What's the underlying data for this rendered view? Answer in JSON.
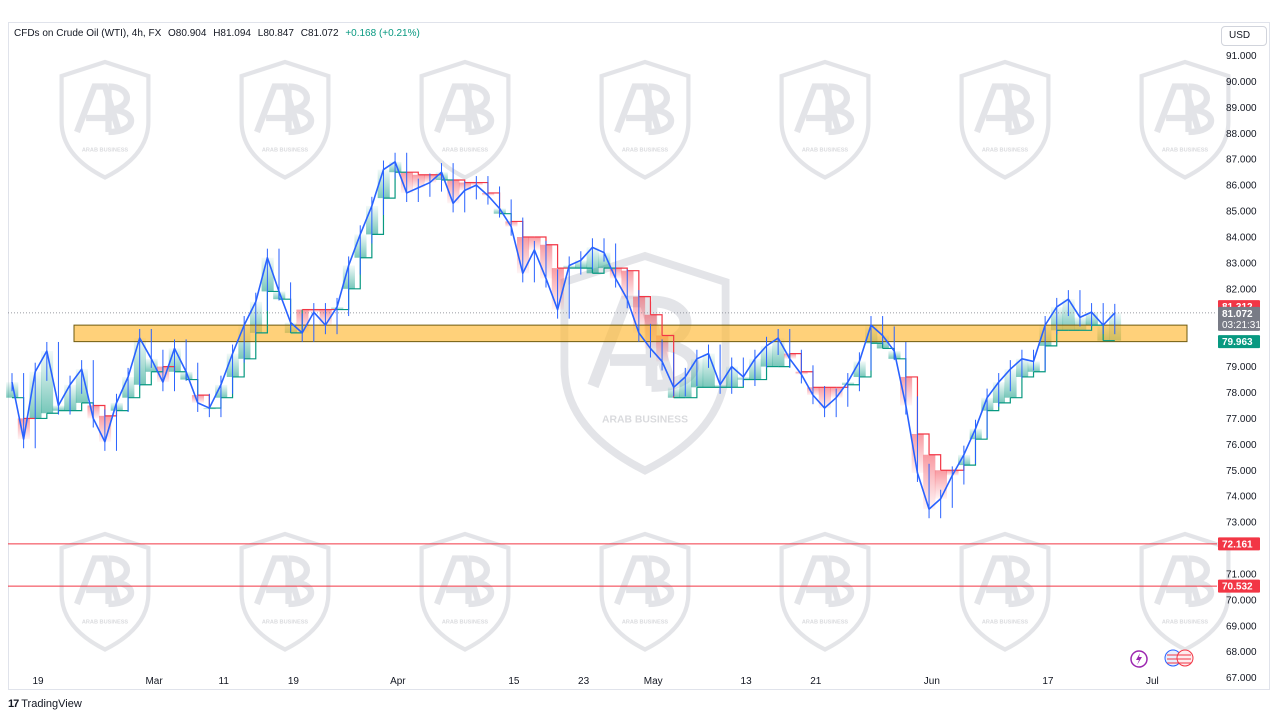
{
  "header": {
    "symbol": "CFDs on Crude Oil (WTI), 4h, FX",
    "open": "O80.904",
    "high": "H81.094",
    "low": "L80.847",
    "close": "C81.072",
    "change": "+0.168 (+0.21%)"
  },
  "currency_label": "USD",
  "branding": {
    "platform": "TradingView",
    "watermark": "ARAB BUSINESS"
  },
  "colors": {
    "up_band": "#089981",
    "down_band": "#f23645",
    "zone_fill": "#ffb833",
    "price_line": "#2962ff"
  },
  "chart_data": {
    "type": "line",
    "title": "CFDs on Crude Oil (WTI), 4h, FX",
    "ylim": [
      66.6,
      91.6
    ],
    "grid": false,
    "y_ticks": [
      "91.000",
      "90.000",
      "89.000",
      "88.000",
      "87.000",
      "86.000",
      "85.000",
      "84.000",
      "83.000",
      "82.000",
      "79.000",
      "78.000",
      "77.000",
      "76.000",
      "75.000",
      "74.000",
      "73.000",
      "71.000",
      "70.000",
      "69.000",
      "68.000",
      "67.000"
    ],
    "x_ticks": [
      {
        "label": "19",
        "i": 0
      },
      {
        "label": "Mar",
        "i": 10
      },
      {
        "label": "11",
        "i": 16
      },
      {
        "label": "19",
        "i": 22
      },
      {
        "label": "Apr",
        "i": 31
      },
      {
        "label": "15",
        "i": 41
      },
      {
        "label": "23",
        "i": 47
      },
      {
        "label": "May",
        "i": 53
      },
      {
        "label": "13",
        "i": 61
      },
      {
        "label": "21",
        "i": 67
      },
      {
        "label": "Jun",
        "i": 77
      },
      {
        "label": "17",
        "i": 87
      },
      {
        "label": "Jul",
        "i": 96
      }
    ],
    "series": [
      {
        "values": [
          78.4,
          76.2,
          78.8,
          79.6,
          77.5,
          78.3,
          78.9,
          77.0,
          76.1,
          77.6,
          78.6,
          80.1,
          79.3,
          78.4,
          79.7,
          78.8,
          77.6,
          77.4,
          78.3,
          79.5,
          80.6,
          81.5,
          83.2,
          81.9,
          80.7,
          80.3,
          81.1,
          80.6,
          81.3,
          82.9,
          84.1,
          85.2,
          86.6,
          86.9,
          85.7,
          85.9,
          86.1,
          86.5,
          85.3,
          85.8,
          86.0,
          85.6,
          85.1,
          84.4,
          82.6,
          83.5,
          82.4,
          81.2,
          82.9,
          83.1,
          83.6,
          83.4,
          82.4,
          81.6,
          80.3,
          79.7,
          79.2,
          78.2,
          78.6,
          79.3,
          79.5,
          78.3,
          79.0,
          78.6,
          79.3,
          79.8,
          80.1,
          79.3,
          78.7,
          77.9,
          77.4,
          77.8,
          78.4,
          79.2,
          80.6,
          80.2,
          79.6,
          77.5,
          74.9,
          73.5,
          73.9,
          74.8,
          75.6,
          76.6,
          77.8,
          78.4,
          78.9,
          79.3,
          79.2,
          80.6,
          81.3,
          81.6,
          80.9,
          81.1,
          80.6,
          81.07
        ],
        "trail_values": [
          77.8,
          77.0,
          77.0,
          77.2,
          77.3,
          77.3,
          77.6,
          77.5,
          77.1,
          77.3,
          77.8,
          78.3,
          78.8,
          79.0,
          78.8,
          78.5,
          77.9,
          77.4,
          77.8,
          78.6,
          79.3,
          80.3,
          81.9,
          81.6,
          80.3,
          81.2,
          81.2,
          81.2,
          81.2,
          82.0,
          83.2,
          84.1,
          85.5,
          86.5,
          86.5,
          86.4,
          86.4,
          86.2,
          86.2,
          86.1,
          86.1,
          85.7,
          84.9,
          84.6,
          84.0,
          84.0,
          83.7,
          82.8,
          82.8,
          82.8,
          82.6,
          82.8,
          82.8,
          82.7,
          81.7,
          81.0,
          80.2,
          77.8,
          77.8,
          78.2,
          78.2,
          78.2,
          78.2,
          78.5,
          78.5,
          79.0,
          79.0,
          79.5,
          78.8,
          78.2,
          78.2,
          78.2,
          78.3,
          78.6,
          79.9,
          79.7,
          79.3,
          78.6,
          76.4,
          75.6,
          75.0,
          75.0,
          75.2,
          76.2,
          77.3,
          77.6,
          77.8,
          78.6,
          78.8,
          79.8,
          80.4,
          80.4,
          80.4,
          80.6,
          80.0,
          80.0
        ],
        "resistance_zone": [
          79.963,
          80.6
        ],
        "horizontal_levels": [
          72.161,
          70.532
        ]
      }
    ],
    "price_labels": [
      {
        "value": 81.312,
        "text": "81.312",
        "bg": "#f23645"
      },
      {
        "value": 81.072,
        "text": "81.072",
        "text2": "03:21:31",
        "bg": "#787b86"
      },
      {
        "value": 79.963,
        "text": "79.963",
        "bg": "#089981"
      },
      {
        "value": 72.161,
        "text": "72.161",
        "bg": "#f23645"
      },
      {
        "value": 70.532,
        "text": "70.532",
        "bg": "#f23645"
      }
    ]
  }
}
